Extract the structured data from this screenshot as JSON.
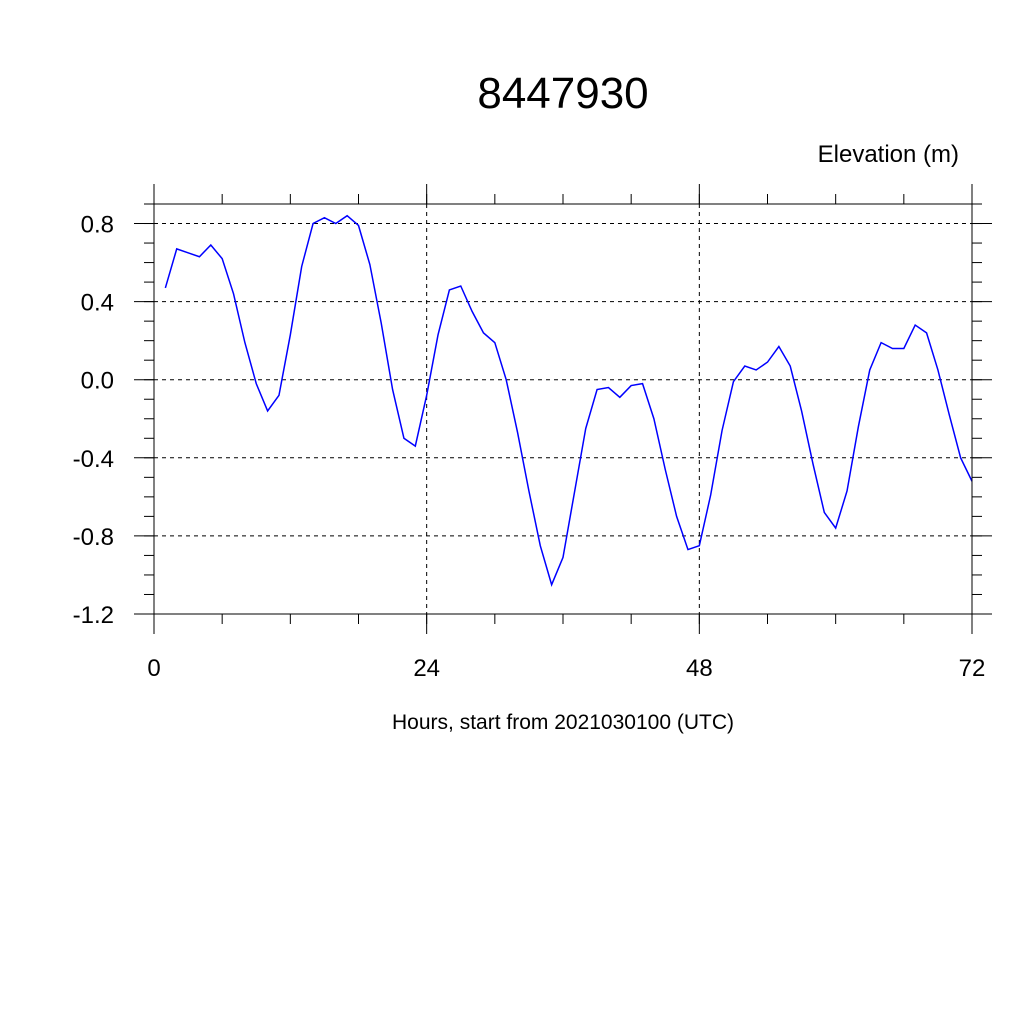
{
  "chart_data": {
    "type": "line",
    "title": "8447930",
    "ylabel": "Elevation (m)",
    "xlabel": "Hours, start from 2021030100 (UTC)",
    "xlim": [
      0,
      72
    ],
    "ylim": [
      -1.2,
      0.9
    ],
    "x_ticks": [
      0,
      24,
      48,
      72
    ],
    "x_tick_labels": [
      "0",
      "24",
      "48",
      "72"
    ],
    "y_ticks": [
      0.8,
      0.4,
      0.0,
      -0.4,
      -0.8,
      -1.2
    ],
    "y_tick_labels": [
      "0.8",
      "0.4",
      "0.0",
      "-0.4",
      "-0.8",
      "-1.2"
    ],
    "grid": "dashed at major ticks",
    "line_color": "#0000ff",
    "series": [
      {
        "x": [
          1,
          2,
          3,
          4,
          5,
          6,
          7,
          8,
          9,
          10,
          11,
          12,
          13,
          14,
          15,
          16,
          17,
          18,
          19,
          20,
          21,
          22,
          23,
          24,
          25,
          26,
          27,
          28,
          29,
          30,
          31,
          32,
          33,
          34,
          35,
          36,
          37,
          38,
          39,
          40,
          41,
          42,
          43,
          44,
          45,
          46,
          47,
          48,
          49,
          50,
          51,
          52,
          53,
          54,
          55,
          56,
          57,
          58,
          59,
          60,
          61,
          62,
          63,
          64,
          65,
          66,
          67,
          68,
          69,
          70,
          71,
          72
        ],
        "values": [
          0.47,
          0.67,
          0.65,
          0.63,
          0.69,
          0.62,
          0.44,
          0.19,
          -0.02,
          -0.16,
          -0.08,
          0.23,
          0.58,
          0.8,
          0.83,
          0.8,
          0.84,
          0.79,
          0.59,
          0.29,
          -0.05,
          -0.3,
          -0.34,
          -0.08,
          0.23,
          0.46,
          0.48,
          0.35,
          0.24,
          0.19,
          0.0,
          -0.27,
          -0.57,
          -0.85,
          -1.05,
          -0.91,
          -0.58,
          -0.25,
          -0.05,
          -0.04,
          -0.09,
          -0.03,
          -0.02,
          -0.2,
          -0.46,
          -0.7,
          -0.87,
          -0.85,
          -0.59,
          -0.26,
          -0.01,
          0.07,
          0.05,
          0.09,
          0.17,
          0.07,
          -0.16,
          -0.43,
          -0.68,
          -0.76,
          -0.57,
          -0.24,
          0.05,
          0.19,
          0.16,
          0.16,
          0.28,
          0.24,
          0.05,
          -0.18,
          -0.4,
          -0.52
        ]
      }
    ]
  }
}
